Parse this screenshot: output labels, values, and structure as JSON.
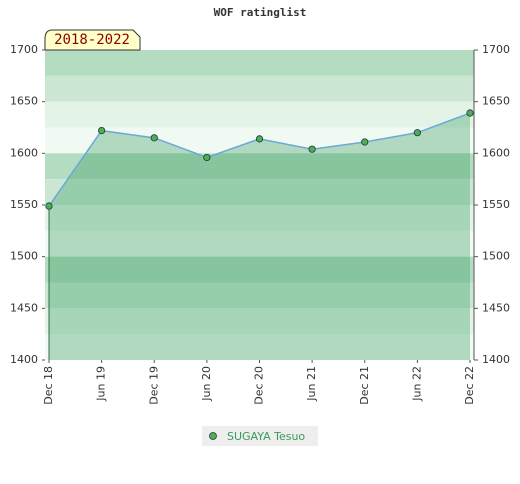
{
  "chart_data": {
    "type": "line",
    "title": "WOF ratinglist",
    "annotation": "2018-2022",
    "categories": [
      "Dec 18",
      "Jun 19",
      "Dec 19",
      "Jun 20",
      "Dec 20",
      "Jun 21",
      "Dec 21",
      "Jun 22",
      "Dec 22"
    ],
    "series": [
      {
        "name": "SUGAYA Tesuo",
        "color": "#6aa8d8",
        "marker_color": "#4caf50",
        "values": [
          1549,
          1622,
          1615,
          1596,
          1614,
          1604,
          1611,
          1620,
          1639
        ]
      }
    ],
    "ylim": [
      1400,
      1700
    ],
    "yticks": [
      1400,
      1450,
      1500,
      1550,
      1600,
      1650,
      1700
    ],
    "y2lim": [
      1400,
      1700
    ],
    "y2ticks": [
      1400,
      1450,
      1500,
      1550,
      1600,
      1650,
      1700
    ],
    "area": true
  }
}
